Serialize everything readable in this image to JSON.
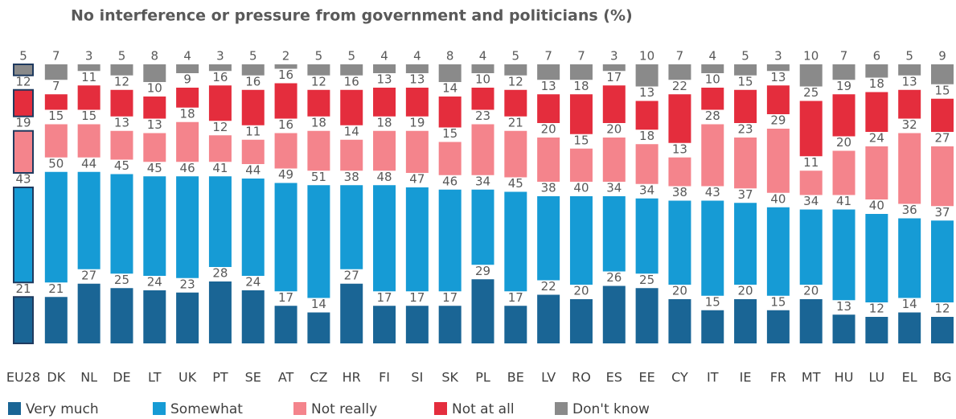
{
  "chart_data": {
    "type": "bar",
    "stacked": true,
    "title": "No interference or pressure from government and politicians (%)",
    "categories": [
      "EU28",
      "DK",
      "NL",
      "DE",
      "LT",
      "UK",
      "PT",
      "SE",
      "AT",
      "CZ",
      "HR",
      "FI",
      "SI",
      "SK",
      "PL",
      "BE",
      "LV",
      "RO",
      "ES",
      "EE",
      "CY",
      "IT",
      "IE",
      "FR",
      "MT",
      "HU",
      "LU",
      "EL",
      "BG"
    ],
    "series": [
      {
        "name": "Very much",
        "color": "#1a6595",
        "values": [
          21,
          21,
          27,
          25,
          24,
          23,
          28,
          24,
          17,
          14,
          27,
          17,
          17,
          17,
          29,
          17,
          22,
          20,
          26,
          25,
          20,
          15,
          20,
          15,
          20,
          13,
          12,
          14,
          12
        ]
      },
      {
        "name": "Somewhat",
        "color": "#169bd5",
        "values": [
          43,
          50,
          44,
          45,
          45,
          46,
          41,
          44,
          49,
          51,
          38,
          48,
          47,
          46,
          34,
          45,
          38,
          40,
          34,
          34,
          38,
          43,
          37,
          40,
          34,
          41,
          40,
          36,
          37
        ]
      },
      {
        "name": "Not really",
        "color": "#f4848c",
        "values": [
          19,
          15,
          15,
          13,
          13,
          18,
          12,
          11,
          16,
          18,
          14,
          18,
          19,
          15,
          23,
          21,
          20,
          15,
          20,
          18,
          13,
          28,
          23,
          29,
          11,
          20,
          24,
          32,
          27
        ]
      },
      {
        "name": "Not at all",
        "color": "#e42d3d",
        "values": [
          12,
          7,
          11,
          12,
          10,
          9,
          16,
          16,
          16,
          12,
          16,
          13,
          13,
          14,
          10,
          12,
          13,
          18,
          17,
          13,
          22,
          10,
          15,
          13,
          25,
          19,
          18,
          13,
          15
        ]
      },
      {
        "name": "Don't know",
        "color": "#8a8a8a",
        "values": [
          5,
          7,
          3,
          5,
          8,
          4,
          3,
          5,
          2,
          5,
          5,
          4,
          4,
          8,
          4,
          5,
          7,
          7,
          3,
          10,
          7,
          4,
          5,
          3,
          10,
          7,
          6,
          5,
          9
        ]
      }
    ]
  }
}
